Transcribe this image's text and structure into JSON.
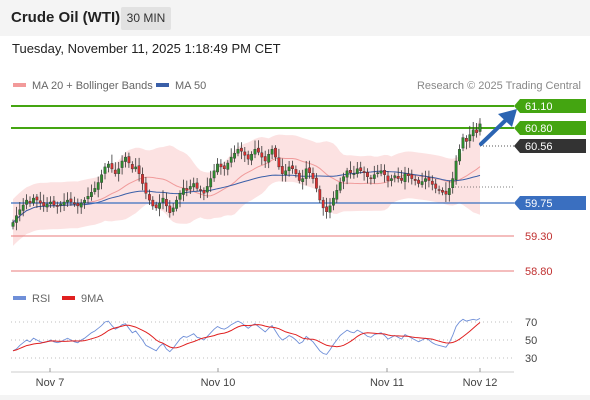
{
  "header": {
    "instrument": "Crude Oil (WTI)",
    "timeframe": "30 MIN"
  },
  "datetime": "Tuesday, November 11, 2025 1:18:49 PM CET",
  "legend": {
    "bollinger": "MA 20 + Bollinger Bands",
    "ma50": "MA 50",
    "rsi": "RSI",
    "rsi_ma": "9MA"
  },
  "copyright": "Research © 2025 Trading Central",
  "colors": {
    "bull": "#2e8b2e",
    "bear": "#d83030",
    "resistance": "#44a511",
    "pivot": "#3a6fc0",
    "support": "#e87b7b",
    "current": "#333333",
    "arrow": "#2b64b2",
    "band_fill": "#fbdddd"
  },
  "price_levels": [
    {
      "label": "61.10",
      "kind": "resistance"
    },
    {
      "label": "60.80",
      "kind": "resistance"
    },
    {
      "label": "60.56",
      "kind": "current"
    },
    {
      "label": "59.75",
      "kind": "pivot"
    },
    {
      "label": "59.30",
      "kind": "support"
    },
    {
      "label": "58.80",
      "kind": "support"
    }
  ],
  "rsi_axis": [
    "70",
    "50",
    "30"
  ],
  "x_axis": [
    "Nov 7",
    "Nov 10",
    "Nov 11",
    "Nov 12"
  ],
  "chart_data": {
    "type": "candlestick",
    "price_scale": {
      "min": 58.6,
      "max": 61.3
    },
    "closes": [
      59.55,
      59.62,
      59.68,
      59.73,
      59.78,
      59.75,
      59.8,
      59.78,
      59.75,
      59.72,
      59.74,
      59.76,
      59.73,
      59.72,
      59.74,
      59.76,
      59.78,
      59.76,
      59.74,
      59.72,
      59.75,
      59.78,
      59.82,
      59.86,
      59.9,
      59.96,
      60.04,
      60.12,
      60.15,
      60.1,
      60.05,
      60.1,
      60.18,
      60.22,
      60.16,
      60.1,
      60.12,
      60.05,
      59.95,
      59.85,
      59.78,
      59.72,
      59.7,
      59.75,
      59.8,
      59.72,
      59.65,
      59.7,
      59.78,
      59.85,
      59.9,
      59.88,
      59.92,
      59.95,
      59.9,
      59.88,
      59.85,
      59.92,
      60.0,
      60.08,
      60.15,
      60.12,
      60.1,
      60.16,
      60.22,
      60.26,
      60.3,
      60.28,
      60.24,
      60.2,
      60.25,
      60.3,
      60.27,
      60.22,
      60.18,
      60.25,
      60.3,
      60.22,
      60.12,
      60.05,
      60.08,
      60.12,
      60.1,
      60.05,
      59.98,
      60.0,
      60.1,
      60.06,
      60.0,
      59.9,
      59.78,
      59.7,
      59.66,
      59.72,
      59.8,
      59.88,
      59.96,
      60.02,
      60.08,
      60.06,
      60.05,
      60.1,
      60.08,
      60.06,
      60.02,
      60.0,
      60.04,
      60.06,
      60.08,
      60.04,
      59.98,
      60.0,
      60.03,
      60.0,
      59.98,
      60.05,
      60.03,
      60.0,
      59.98,
      59.95,
      59.97,
      60.0,
      59.98,
      59.94,
      59.9,
      59.88,
      59.86,
      59.84,
      59.9,
      60.0,
      60.18,
      60.3,
      60.42,
      60.38,
      60.45,
      60.5,
      60.47,
      60.56
    ],
    "rsi": [
      38,
      40,
      44,
      47,
      50,
      48,
      52,
      50,
      48,
      47,
      48,
      50,
      48,
      47,
      48,
      50,
      52,
      50,
      48,
      47,
      50,
      52,
      55,
      58,
      60,
      63,
      66,
      70,
      71,
      66,
      62,
      64,
      67,
      68,
      63,
      58,
      60,
      55,
      50,
      44,
      42,
      40,
      38,
      43,
      46,
      40,
      37,
      41,
      46,
      51,
      54,
      53,
      55,
      57,
      53,
      52,
      50,
      54,
      58,
      62,
      65,
      63,
      62,
      64,
      67,
      69,
      71,
      69,
      66,
      63,
      66,
      68,
      65,
      62,
      59,
      63,
      66,
      60,
      54,
      50,
      52,
      55,
      53,
      50,
      46,
      48,
      54,
      51,
      48,
      43,
      38,
      35,
      34,
      39,
      45,
      50,
      55,
      58,
      61,
      59,
      58,
      61,
      59,
      57,
      54,
      53,
      56,
      57,
      58,
      55,
      51,
      53,
      55,
      53,
      51,
      56,
      54,
      52,
      50,
      48,
      50,
      52,
      50,
      47,
      45,
      44,
      43,
      42,
      47,
      55,
      65,
      70,
      73,
      71,
      72,
      73,
      72,
      74
    ]
  }
}
